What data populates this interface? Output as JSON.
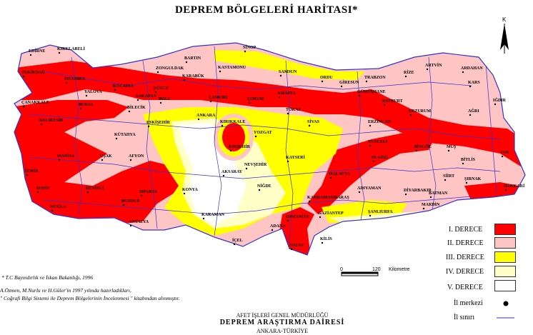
{
  "title": "DEPREM BÖLGELERİ HARİTASI*",
  "compass": {
    "label": "K",
    "icon": "north-arrow-icon"
  },
  "zone_colors": {
    "I": "#ff0000",
    "II": "#ffc4c4",
    "III": "#ffff00",
    "IV": "#ffffc8",
    "V": "#ffffff",
    "border": "#3333cc"
  },
  "legend": {
    "zones": [
      {
        "label": "I. DERECE",
        "color": "#ff0000"
      },
      {
        "label": "II. DERECE",
        "color": "#ffc4c4"
      },
      {
        "label": "III. DERECE",
        "color": "#ffff00"
      },
      {
        "label": "IV. DERECE",
        "color": "#ffffc8"
      },
      {
        "label": "V. DERECE",
        "color": "#ffffff"
      }
    ],
    "capital_label": "İl merkezi",
    "border_label": "İl sınırı"
  },
  "scale": {
    "start": "0",
    "end": "120",
    "unit": "Kilometre"
  },
  "footnotes": [
    "* T.C Bayındırlık ve İskan Bakanlığı, 1996",
    "A.Özmen, M.Nurlu ve H.Güler'in 1997 yılında hazırladıkları,",
    "\" Coğrafi Bilgi Sistemi ile Deprem Bölgelerinin İncelenmesi \" kitabından alınmıştır."
  ],
  "institution": {
    "line1": "AFET İŞLERİ GENEL MÜDÜRLÜĞÜ",
    "line2": "DEPREM ARAŞTIRMA DAİRESİ",
    "line3": "ANKARA-TÜRKİYE"
  },
  "cities": [
    "EDİRNE",
    "KIRKLARELİ",
    "TEKİRDAĞ",
    "İSTANBUL",
    "ÇANAKKALE",
    "BALIKESİR",
    "BURSA",
    "YALOVA",
    "KOCAELİ",
    "SAKARYA",
    "DÜZCE",
    "BOLU",
    "ZONGULDAK",
    "BARTIN",
    "KARABÜK",
    "KASTAMONU",
    "SİNOP",
    "SAMSUN",
    "ORDU",
    "GİRESUN",
    "TRABZON",
    "RİZE",
    "ARTVİN",
    "ARDAHAN",
    "KARS",
    "ÇANKIRI",
    "ÇORUM",
    "AMASYA",
    "TOKAT",
    "GÜMÜŞHANE",
    "BAYBURT",
    "ERZURUM",
    "AĞRI",
    "IĞDIR",
    "ERZİNCAN",
    "SİVAS",
    "YOZGAT",
    "KIRIKKALE",
    "ANKARA",
    "KIRŞEHİR",
    "KAYSERİ",
    "NEVŞEHİR",
    "AKSARAY",
    "NİĞDE",
    "KONYA",
    "KARAMAN",
    "ESKİŞEHİR",
    "BİLECİK",
    "KÜTAHYA",
    "AFYON",
    "UŞAK",
    "MANİSA",
    "İZMİR",
    "AYDIN",
    "DENİZLİ",
    "MUĞLA",
    "BURDUR",
    "ISPARTA",
    "ANTALYA",
    "İÇEL",
    "ADANA",
    "OSMANİYE",
    "KAHRAMANMARAŞ",
    "GAZİANTEP",
    "KİLİS",
    "HATAY",
    "ŞANLIURFA",
    "ADIYAMAN",
    "MALATYA",
    "ELAZIĞ",
    "TUNCELİ",
    "BİNGÖL",
    "MUŞ",
    "BİTLİS",
    "VAN",
    "HAKKARİ",
    "ŞIRNAK",
    "SİİRT",
    "BATMAN",
    "DİYARBAKIR",
    "MARDİN"
  ]
}
